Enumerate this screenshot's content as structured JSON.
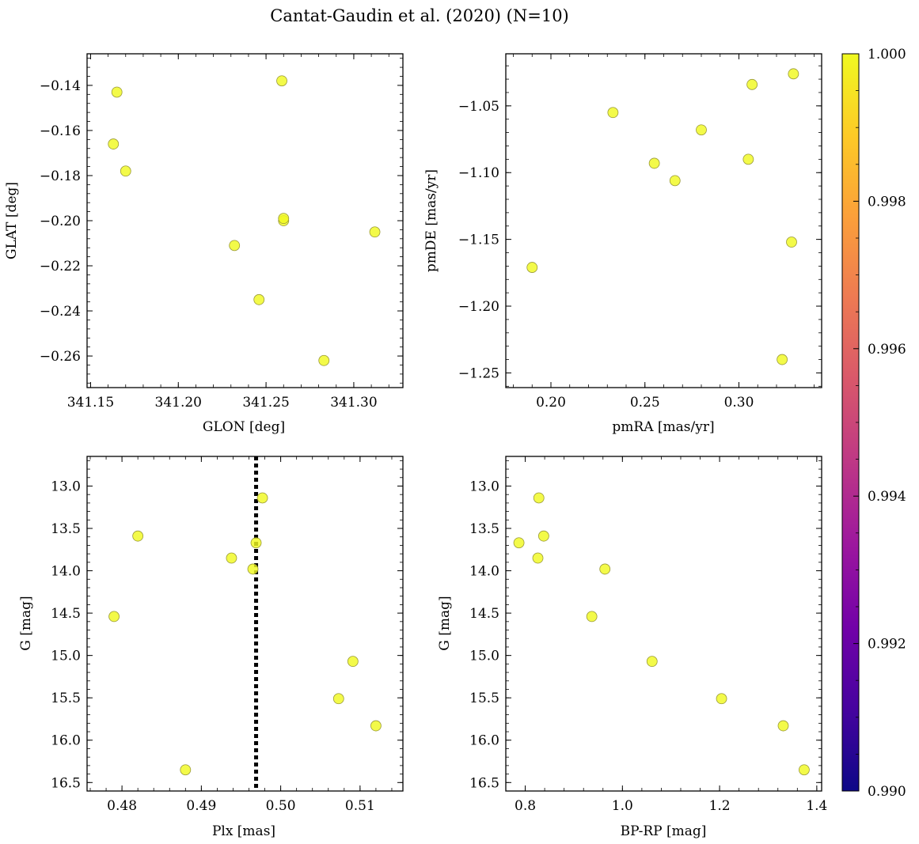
{
  "figure": {
    "title": "Cantat-Gaudin et al. (2020) (N=10)"
  },
  "colors": {
    "marker_fill": "#f0f921",
    "marker_edge": "#9a9a38",
    "vline": "#000000",
    "colormap": [
      "#0d0887",
      "#46039f",
      "#7201a8",
      "#9c179e",
      "#bd3786",
      "#d8576b",
      "#ed7953",
      "#fb9f3a",
      "#fdca26",
      "#f0f921"
    ]
  },
  "colorbar": {
    "range": [
      0.99,
      1.0
    ],
    "ticks": [
      "0.990",
      "0.992",
      "0.994",
      "0.996",
      "0.998",
      "1.000"
    ]
  },
  "chart_data": [
    {
      "type": "scatter",
      "id": "glon-glat",
      "xlabel": "GLON [deg]",
      "ylabel": "GLAT [deg]",
      "xlim": [
        341.148,
        341.328
      ],
      "ylim": [
        -0.274,
        -0.126
      ],
      "xticks": [
        "341.15",
        "341.20",
        "341.25",
        "341.30"
      ],
      "yticks": [
        "−0.14",
        "−0.16",
        "−0.18",
        "−0.20",
        "−0.22",
        "−0.24",
        "−0.26"
      ],
      "x": [
        341.165,
        341.163,
        341.17,
        341.259,
        341.26,
        341.26,
        341.232,
        341.312,
        341.246,
        341.283
      ],
      "y": [
        -0.143,
        -0.166,
        -0.178,
        -0.138,
        -0.2,
        -0.199,
        -0.211,
        -0.205,
        -0.235,
        -0.262
      ]
    },
    {
      "type": "scatter",
      "id": "pmra-pmde",
      "xlabel": "pmRA [mas/yr]",
      "ylabel": "pmDE [mas/yr]",
      "xlim": [
        0.176,
        0.344
      ],
      "ylim": [
        -1.261,
        -1.011
      ],
      "xticks": [
        "0.20",
        "0.25",
        "0.30"
      ],
      "yticks": [
        "−1.05",
        "−1.10",
        "−1.15",
        "−1.20",
        "−1.25"
      ],
      "x": [
        0.329,
        0.307,
        0.233,
        0.28,
        0.255,
        0.305,
        0.266,
        0.328,
        0.19,
        0.323
      ],
      "y": [
        -1.026,
        -1.034,
        -1.055,
        -1.068,
        -1.093,
        -1.09,
        -1.106,
        -1.152,
        -1.171,
        -1.24
      ]
    },
    {
      "type": "scatter",
      "id": "plx-g",
      "xlabel": "Plx [mas]",
      "ylabel": "G [mag]",
      "xlim": [
        0.4756,
        0.5154
      ],
      "ylim": [
        16.6,
        12.65
      ],
      "xticks": [
        "0.48",
        "0.49",
        "0.50",
        "0.51"
      ],
      "yticks": [
        "13.0",
        "13.5",
        "14.0",
        "14.5",
        "15.0",
        "15.5",
        "16.0",
        "16.5"
      ],
      "x": [
        0.4977,
        0.482,
        0.4969,
        0.4938,
        0.4965,
        0.479,
        0.5091,
        0.5073,
        0.512,
        0.488
      ],
      "y": [
        13.14,
        13.59,
        13.67,
        13.85,
        13.98,
        14.54,
        15.07,
        15.51,
        15.83,
        16.35
      ],
      "vline": 0.4969
    },
    {
      "type": "scatter",
      "id": "bprp-g",
      "xlabel": "BP-RP [mag]",
      "ylabel": "G [mag]",
      "xlim": [
        0.76,
        1.41
      ],
      "ylim": [
        16.6,
        12.65
      ],
      "xticks": [
        "0.8",
        "1.0",
        "1.2",
        "1.4"
      ],
      "yticks": [
        "13.0",
        "13.5",
        "14.0",
        "14.5",
        "15.0",
        "15.5",
        "16.0",
        "16.5"
      ],
      "x": [
        0.828,
        0.838,
        0.787,
        0.826,
        0.964,
        0.937,
        1.061,
        1.204,
        1.331,
        1.374
      ],
      "y": [
        13.14,
        13.59,
        13.67,
        13.85,
        13.98,
        14.54,
        15.07,
        15.51,
        15.83,
        16.35
      ]
    }
  ]
}
